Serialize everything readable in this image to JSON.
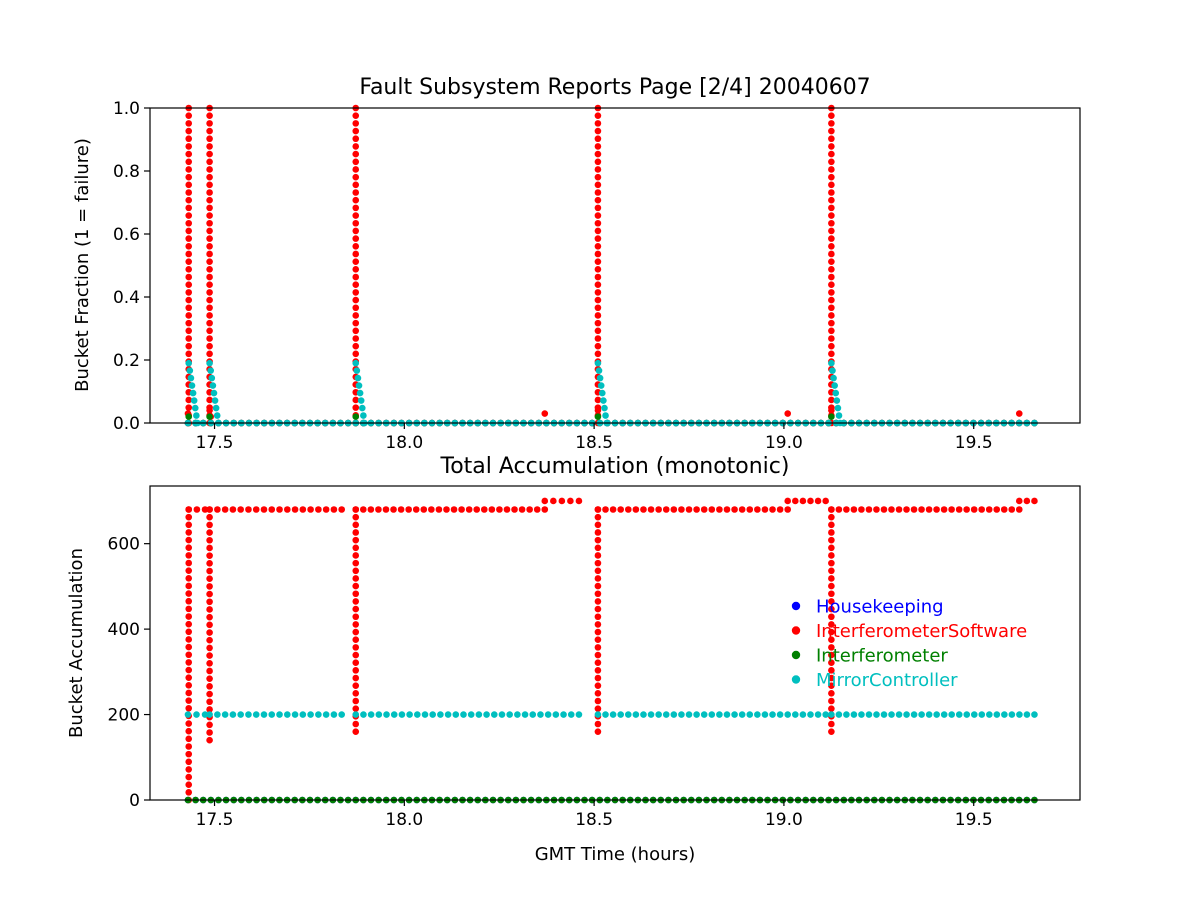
{
  "chart_data": [
    {
      "type": "scatter",
      "title": "Fault Subsystem Reports Page [2/4] 20040607",
      "xlabel": "",
      "ylabel": "Bucket Fraction (1 = failure)",
      "xlim": [
        17.33,
        19.78
      ],
      "ylim": [
        0,
        1.0
      ],
      "xticks": [
        "17.5",
        "18.0",
        "18.5",
        "19.0",
        "19.5"
      ],
      "yticks": [
        "0.0",
        "0.2",
        "0.4",
        "0.6",
        "0.8",
        "1.0"
      ],
      "grid": false,
      "series": [
        {
          "name": "Housekeeping",
          "color": "#0000ff",
          "segments": [
            [
              17.43,
              0,
              19.66,
              0
            ]
          ]
        },
        {
          "name": "InterferometerSoftware",
          "color": "#ff0000",
          "columns": [
            {
              "x": 17.432,
              "from": 0,
              "to": 1.0
            },
            {
              "x": 17.487,
              "from": 0,
              "to": 1.0
            },
            {
              "x": 17.872,
              "from": 0,
              "to": 1.0
            },
            {
              "x": 18.51,
              "from": 0,
              "to": 1.0
            },
            {
              "x": 19.125,
              "from": 0,
              "to": 1.0
            }
          ],
          "points": [
            [
              17.43,
              0.03
            ],
            [
              17.487,
              0.04
            ],
            [
              17.49,
              0.02
            ],
            [
              18.37,
              0.03
            ],
            [
              18.51,
              0.04
            ],
            [
              19.01,
              0.03
            ],
            [
              19.125,
              0.04
            ],
            [
              19.62,
              0.03
            ]
          ],
          "segments": [
            [
              17.43,
              0,
              19.66,
              0
            ]
          ]
        },
        {
          "name": "Interferometer",
          "color": "#008000",
          "segments": [
            [
              17.43,
              0,
              19.66,
              0
            ]
          ],
          "points": [
            [
              17.432,
              0.02
            ],
            [
              17.487,
              0.02
            ],
            [
              17.872,
              0.02
            ],
            [
              18.51,
              0.02
            ],
            [
              19.125,
              0.02
            ]
          ]
        },
        {
          "name": "MirrorController",
          "color": "#00bfbf",
          "segments": [
            [
              17.432,
              0.19,
              17.455,
              0
            ],
            [
              17.487,
              0.19,
              17.51,
              0
            ],
            [
              17.872,
              0.19,
              17.895,
              0
            ],
            [
              18.51,
              0.19,
              18.533,
              0
            ],
            [
              19.125,
              0.19,
              19.148,
              0
            ],
            [
              17.43,
              0,
              19.66,
              0
            ]
          ]
        }
      ]
    },
    {
      "type": "scatter",
      "title": "Total Accumulation (monotonic)",
      "xlabel": "GMT Time (hours)",
      "ylabel": "Bucket Accumulation",
      "xlim": [
        17.33,
        19.78
      ],
      "ylim": [
        0,
        735
      ],
      "xticks": [
        "17.5",
        "18.0",
        "18.5",
        "19.0",
        "19.5"
      ],
      "yticks": [
        "0",
        "200",
        "400",
        "600"
      ],
      "grid": false,
      "legend": {
        "position": "right",
        "entries": [
          "Housekeeping",
          "InterferometerSoftware",
          "Interferometer",
          "MirrorController"
        ]
      },
      "series": [
        {
          "name": "Housekeeping",
          "color": "#0000ff",
          "segments": [
            [
              17.43,
              0,
              19.66,
              0
            ]
          ]
        },
        {
          "name": "InterferometerSoftware",
          "color": "#ff0000",
          "columns": [
            {
              "x": 17.432,
              "from": 0,
              "to": 680
            },
            {
              "x": 17.487,
              "from": 140,
              "to": 680
            },
            {
              "x": 17.872,
              "from": 160,
              "to": 680
            },
            {
              "x": 18.51,
              "from": 160,
              "to": 680
            },
            {
              "x": 19.125,
              "from": 160,
              "to": 680
            }
          ],
          "segments": [
            [
              17.432,
              680,
              17.475,
              680
            ],
            [
              17.487,
              680,
              17.835,
              680
            ],
            [
              17.872,
              680,
              18.37,
              680
            ],
            [
              18.37,
              700,
              18.46,
              700
            ],
            [
              18.51,
              680,
              19.01,
              680
            ],
            [
              19.01,
              700,
              19.11,
              700
            ],
            [
              19.125,
              680,
              19.62,
              680
            ],
            [
              19.62,
              700,
              19.66,
              700
            ]
          ]
        },
        {
          "name": "Interferometer",
          "color": "#008000",
          "segments": [
            [
              17.43,
              0,
              19.66,
              0
            ]
          ]
        },
        {
          "name": "MirrorController",
          "color": "#00bfbf",
          "segments": [
            [
              17.43,
              200,
              17.475,
              200
            ],
            [
              17.487,
              200,
              17.835,
              200
            ],
            [
              17.872,
              200,
              18.46,
              200
            ],
            [
              18.51,
              200,
              19.11,
              200
            ],
            [
              19.125,
              200,
              19.66,
              200
            ]
          ]
        }
      ]
    }
  ]
}
